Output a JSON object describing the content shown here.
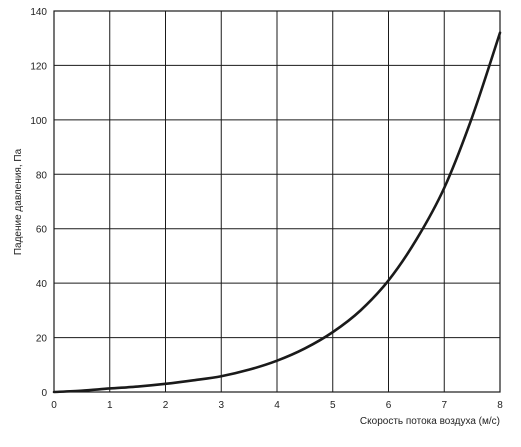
{
  "chart_data": {
    "type": "line",
    "xlabel": "Скорость потока воздуха (м/с)",
    "ylabel": "Падение давления, Па",
    "xlim": [
      0,
      8
    ],
    "ylim": [
      0,
      140
    ],
    "x_ticks": [
      0,
      1,
      2,
      3,
      4,
      5,
      6,
      7,
      8
    ],
    "y_ticks": [
      0,
      20,
      40,
      60,
      80,
      100,
      120,
      140
    ],
    "grid": true,
    "colors": {
      "line": "#1a1a1a",
      "grid": "#1a1a1a"
    },
    "series": [
      {
        "x": [
          0,
          0.5,
          1,
          1.5,
          2,
          2.5,
          3,
          3.5,
          4,
          4.5,
          5,
          5.5,
          6,
          6.5,
          7,
          7.5,
          8
        ],
        "y": [
          0,
          0.5,
          1.3,
          2,
          3,
          4.3,
          5.8,
          8.2,
          11.5,
          16,
          22,
          30,
          41,
          56,
          75,
          101,
          132
        ]
      }
    ]
  }
}
